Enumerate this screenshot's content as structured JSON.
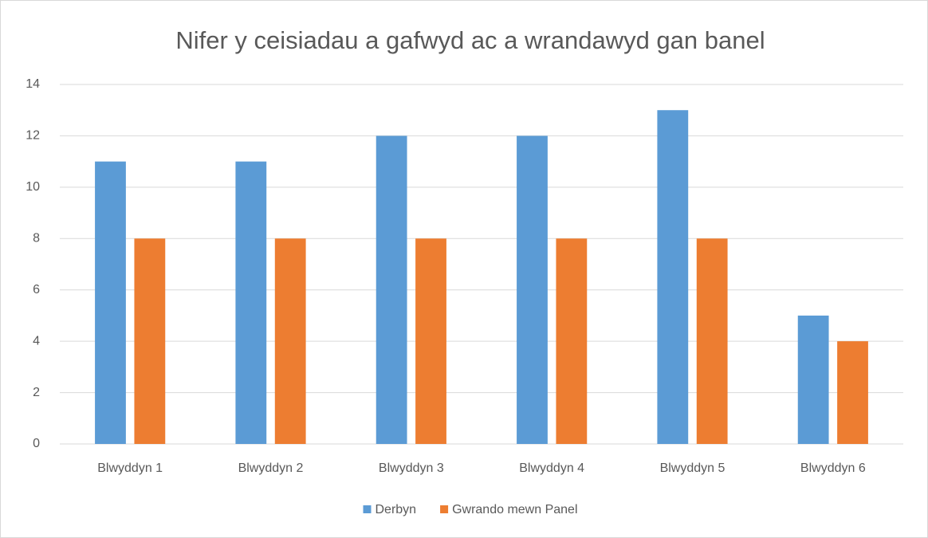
{
  "chart_data": {
    "type": "bar",
    "title": "Nifer y ceisiadau a gafwyd ac a wrandawyd gan banel",
    "categories": [
      "Blwyddyn 1",
      "Blwyddyn 2",
      "Blwyddyn 3",
      "Blwyddyn 4",
      "Blwyddyn 5",
      "Blwyddyn 6"
    ],
    "series": [
      {
        "name": "Derbyn",
        "color": "#5b9bd5",
        "values": [
          11,
          11,
          12,
          12,
          13,
          5
        ]
      },
      {
        "name": "Gwrando mewn Panel",
        "color": "#ed7d31",
        "values": [
          8,
          8,
          8,
          8,
          8,
          4
        ]
      }
    ],
    "ylim": [
      0,
      14
    ],
    "yticks": [
      0,
      2,
      4,
      6,
      8,
      10,
      12,
      14
    ],
    "grid": true,
    "legend": "bottom"
  }
}
